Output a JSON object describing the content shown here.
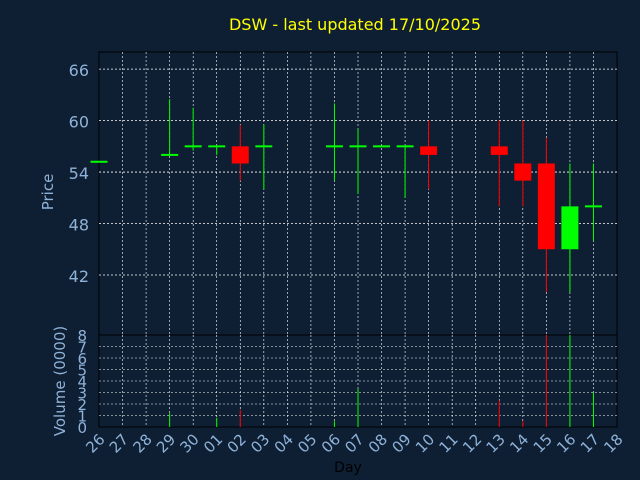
{
  "colors": {
    "background": "#0e1f33",
    "plot": "#0e1f33",
    "grid": "#ffffff",
    "axis_text": "#8fb2d8",
    "title": "#ffff00",
    "up": "#00ff00",
    "down": "#ff0000"
  },
  "chart_data": {
    "type": "candlestick",
    "title": "DSW - last updated 17/10/2025",
    "xlabel": "Day",
    "grid": true,
    "price_panel": {
      "ylabel": "Price",
      "yticks": [
        42,
        48,
        54,
        60,
        66
      ],
      "ylim": [
        35,
        68
      ]
    },
    "volume_panel": {
      "ylabel": "Volume (0000)",
      "yticks": [
        0,
        1,
        2,
        3,
        4,
        5,
        6,
        7,
        8
      ],
      "ylim": [
        0,
        8
      ]
    },
    "x_ticks": [
      "26",
      "27",
      "28",
      "29",
      "30",
      "01",
      "02",
      "03",
      "04",
      "05",
      "06",
      "07",
      "08",
      "09",
      "10",
      "11",
      "12",
      "13",
      "14",
      "15",
      "16",
      "17",
      "18"
    ],
    "candles": [
      {
        "day": "26",
        "o": 55.2,
        "h": 55.2,
        "l": 55.2,
        "c": 55.2,
        "v": 0
      },
      {
        "day": "29",
        "o": 56.0,
        "h": 62.5,
        "l": 56.0,
        "c": 56.0,
        "v": 1.2
      },
      {
        "day": "30",
        "o": 57.0,
        "h": 61.5,
        "l": 56.5,
        "c": 57.0,
        "v": 0
      },
      {
        "day": "01",
        "o": 57.0,
        "h": 57.0,
        "l": 56.0,
        "c": 57.0,
        "v": 0.8
      },
      {
        "day": "02",
        "o": 57.0,
        "h": 59.5,
        "l": 53.0,
        "c": 55.0,
        "v": 1.5
      },
      {
        "day": "03",
        "o": 57.0,
        "h": 59.5,
        "l": 52.0,
        "c": 57.0,
        "v": 0
      },
      {
        "day": "06",
        "o": 57.0,
        "h": 62.0,
        "l": 53.0,
        "c": 57.0,
        "v": 0.5
      },
      {
        "day": "07",
        "o": 57.0,
        "h": 59.0,
        "l": 51.5,
        "c": 57.0,
        "v": 3.3
      },
      {
        "day": "08",
        "o": 57.0,
        "h": 57.0,
        "l": 57.0,
        "c": 57.0,
        "v": 0
      },
      {
        "day": "09",
        "o": 57.0,
        "h": 57.0,
        "l": 51.0,
        "c": 57.0,
        "v": 0
      },
      {
        "day": "10",
        "o": 57.0,
        "h": 60.0,
        "l": 52.0,
        "c": 56.0,
        "v": 0
      },
      {
        "day": "13",
        "o": 57.0,
        "h": 60.0,
        "l": 50.0,
        "c": 56.0,
        "v": 2.3
      },
      {
        "day": "14",
        "o": 55.0,
        "h": 60.0,
        "l": 50.0,
        "c": 53.0,
        "v": 0.5
      },
      {
        "day": "15",
        "o": 55.0,
        "h": 58.0,
        "l": 40.0,
        "c": 45.0,
        "v": 8.0
      },
      {
        "day": "16",
        "o": 45.0,
        "h": 55.0,
        "l": 40.0,
        "c": 50.0,
        "v": 8.0
      },
      {
        "day": "17",
        "o": 50.0,
        "h": 55.0,
        "l": 46.0,
        "c": 50.0,
        "v": 3.0
      }
    ]
  }
}
